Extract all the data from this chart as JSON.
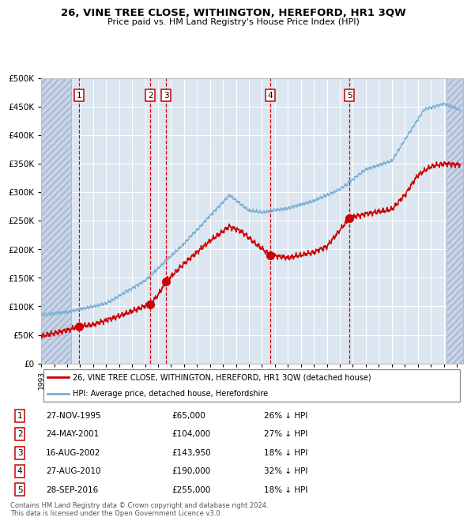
{
  "title": "26, VINE TREE CLOSE, WITHINGTON, HEREFORD, HR1 3QW",
  "subtitle": "Price paid vs. HM Land Registry's House Price Index (HPI)",
  "ylim": [
    0,
    500000
  ],
  "yticks": [
    0,
    50000,
    100000,
    150000,
    200000,
    250000,
    300000,
    350000,
    400000,
    450000,
    500000
  ],
  "sale_dates": [
    1995.9,
    2001.4,
    2002.62,
    2010.65,
    2016.74
  ],
  "sale_prices": [
    65000,
    104000,
    143950,
    190000,
    255000
  ],
  "sale_labels": [
    "1",
    "2",
    "3",
    "4",
    "5"
  ],
  "vline_dates": [
    1995.9,
    2001.4,
    2002.62,
    2010.65,
    2016.74
  ],
  "legend_property": "26, VINE TREE CLOSE, WITHINGTON, HEREFORD, HR1 3QW (detached house)",
  "legend_hpi": "HPI: Average price, detached house, Herefordshire",
  "table_rows": [
    [
      "1",
      "27-NOV-1995",
      "£65,000",
      "26% ↓ HPI"
    ],
    [
      "2",
      "24-MAY-2001",
      "£104,000",
      "27% ↓ HPI"
    ],
    [
      "3",
      "16-AUG-2002",
      "£143,950",
      "18% ↓ HPI"
    ],
    [
      "4",
      "27-AUG-2010",
      "£190,000",
      "32% ↓ HPI"
    ],
    [
      "5",
      "28-SEP-2016",
      "£255,000",
      "18% ↓ HPI"
    ]
  ],
  "footer": "Contains HM Land Registry data © Crown copyright and database right 2024.\nThis data is licensed under the Open Government Licence v3.0.",
  "bg_color": "#dce6f0",
  "grid_color": "#ffffff",
  "line_color_red": "#cc0000",
  "line_color_blue": "#7bafd4",
  "dot_color": "#cc0000",
  "vline_color": "#dd0000",
  "hatch_bg": "#c8d4e8"
}
